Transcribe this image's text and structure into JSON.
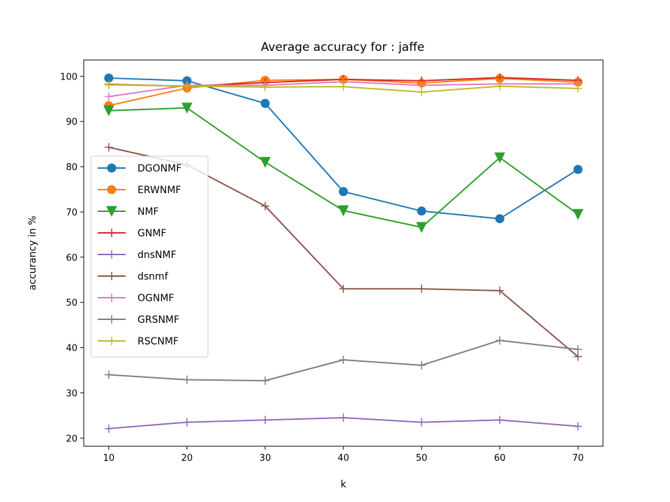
{
  "chart_data": {
    "type": "line",
    "title": "Average accuracy for : jaffe",
    "xlabel": "k",
    "ylabel": "accurancy in %",
    "x": [
      10,
      20,
      30,
      40,
      50,
      60,
      70
    ],
    "xlim": [
      6.8,
      73.2
    ],
    "ylim": [
      18.2,
      103.6
    ],
    "xticks": [
      10,
      20,
      30,
      40,
      50,
      60,
      70
    ],
    "yticks": [
      20,
      30,
      40,
      50,
      60,
      70,
      80,
      90,
      100
    ],
    "grid": false,
    "legend_position": "center-left",
    "series": [
      {
        "name": "DGONMF",
        "color": "#1f77b4",
        "marker": "circle",
        "values": [
          99.6,
          99.0,
          94.0,
          74.5,
          70.2,
          68.5,
          79.4
        ]
      },
      {
        "name": "ERWNMF",
        "color": "#ff7f0e",
        "marker": "circle",
        "values": [
          93.5,
          97.4,
          99.1,
          99.3,
          98.5,
          99.5,
          98.7
        ]
      },
      {
        "name": "NMF",
        "color": "#2ca02c",
        "marker": "triangle-down",
        "values": [
          92.4,
          93.0,
          81.0,
          70.3,
          66.6,
          82.0,
          69.5
        ]
      },
      {
        "name": "GNMF",
        "color": "#d62728",
        "marker": "plus",
        "values": [
          98.2,
          97.8,
          98.6,
          99.3,
          99.0,
          99.7,
          99.1
        ]
      },
      {
        "name": "dnsNMF",
        "color": "#9467bd",
        "marker": "plus",
        "values": [
          22.1,
          23.5,
          24.0,
          24.5,
          23.5,
          24.0,
          22.6
        ]
      },
      {
        "name": "dsnmf",
        "color": "#8c564b",
        "marker": "plus",
        "values": [
          84.3,
          80.4,
          71.3,
          53.0,
          53.0,
          52.6,
          38.0
        ]
      },
      {
        "name": "OGNMF",
        "color": "#e377c2",
        "marker": "plus",
        "values": [
          95.5,
          98.0,
          98.0,
          98.8,
          98.0,
          98.3,
          98.3
        ]
      },
      {
        "name": "GRSNMF",
        "color": "#7f7f7f",
        "marker": "plus",
        "values": [
          34.0,
          32.9,
          32.7,
          37.3,
          36.1,
          41.6,
          39.6
        ]
      },
      {
        "name": "RSCNMF",
        "color": "#bcbd22",
        "marker": "plus",
        "values": [
          98.1,
          97.8,
          97.6,
          97.7,
          96.5,
          97.8,
          97.3
        ]
      }
    ]
  }
}
